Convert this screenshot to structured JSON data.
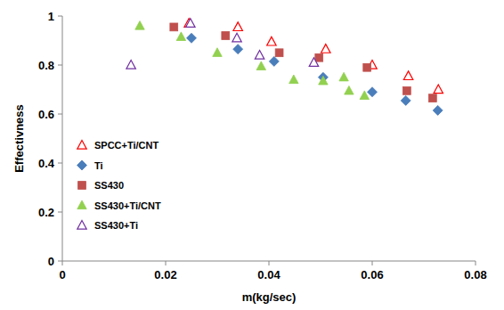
{
  "chart_data": {
    "type": "scatter",
    "x_label": "m(kg/sec)",
    "y_label": "Effectivness",
    "xlim": [
      0,
      0.08
    ],
    "xticks": [
      0,
      0.02,
      0.04,
      0.06,
      0.08
    ],
    "ylim": [
      0,
      1
    ],
    "yticks": [
      0,
      0.2,
      0.4,
      0.6,
      0.8,
      1
    ],
    "grid": false,
    "legend": "left",
    "series": [
      {
        "name": "SPCC+Ti/CNT",
        "color": "#ff0000",
        "marker": "triangle-open",
        "x": [
          0.0245,
          0.034,
          0.0405,
          0.051,
          0.06,
          0.067,
          0.0728
        ],
        "values": [
          0.97,
          0.955,
          0.895,
          0.865,
          0.8,
          0.755,
          0.7
        ]
      },
      {
        "name": "Ti",
        "color": "#4a7ebb",
        "marker": "diamond",
        "x": [
          0.025,
          0.034,
          0.041,
          0.0505,
          0.06,
          0.0665,
          0.0727
        ],
        "values": [
          0.91,
          0.865,
          0.815,
          0.75,
          0.69,
          0.655,
          0.615
        ]
      },
      {
        "name": "SS430",
        "color": "#c0504d",
        "marker": "square",
        "x": [
          0.0216,
          0.0316,
          0.042,
          0.0497,
          0.059,
          0.0667,
          0.0717
        ],
        "values": [
          0.955,
          0.92,
          0.85,
          0.83,
          0.79,
          0.695,
          0.665
        ]
      },
      {
        "name": "SS430+Ti/CNT",
        "color": "#92d050",
        "marker": "triangle",
        "x": [
          0.015,
          0.023,
          0.03,
          0.0385,
          0.0448,
          0.0505,
          0.0545,
          0.0555,
          0.0585
        ],
        "values": [
          0.96,
          0.915,
          0.85,
          0.795,
          0.74,
          0.735,
          0.75,
          0.695,
          0.675
        ]
      },
      {
        "name": "SS430+Ti",
        "color": "#7030a0",
        "marker": "triangle-open",
        "x": [
          0.0133,
          0.0248,
          0.0338,
          0.0382,
          0.0487
        ],
        "values": [
          0.8,
          0.97,
          0.91,
          0.84,
          0.81
        ]
      }
    ]
  }
}
